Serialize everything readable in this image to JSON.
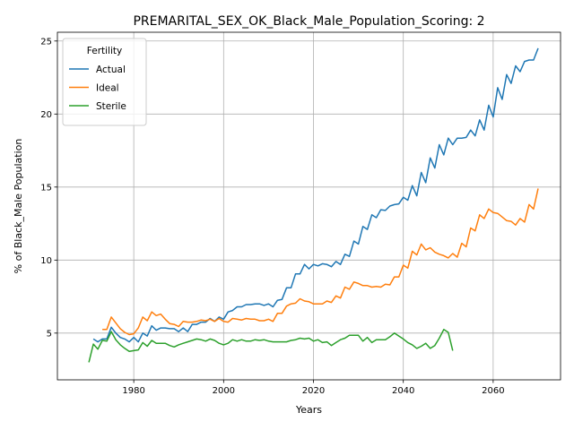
{
  "chart_data": {
    "type": "line",
    "title": "PREMARITAL_SEX_OK_Black_Male_Population_Scoring: 2",
    "xlabel": "Years",
    "ylabel": "% of Black_Male Population",
    "xlim": [
      1963,
      2075
    ],
    "ylim": [
      1.8,
      25.6
    ],
    "xticks": [
      1980,
      2000,
      2020,
      2040,
      2060
    ],
    "yticks": [
      5,
      10,
      15,
      20,
      25
    ],
    "grid": true,
    "legend": {
      "title": "Fertility",
      "placement": "top-left"
    },
    "series": [
      {
        "name": "Actual",
        "color": "#1f77b4",
        "x": [
          1971,
          1972,
          1973,
          1974,
          1975,
          1976,
          1977,
          1978,
          1979,
          1980,
          1981,
          1982,
          1983,
          1984,
          1985,
          1986,
          1987,
          1988,
          1989,
          1990,
          1991,
          1992,
          1993,
          1994,
          1995,
          1996,
          1997,
          1998,
          1999,
          2000,
          2001,
          2002,
          2003,
          2004,
          2005,
          2006,
          2007,
          2008,
          2009,
          2010,
          2011,
          2012,
          2013,
          2014,
          2015,
          2016,
          2017,
          2018,
          2019,
          2020,
          2021,
          2022,
          2023,
          2024,
          2025,
          2026,
          2027,
          2028,
          2029,
          2030,
          2031,
          2032,
          2033,
          2034,
          2035,
          2036,
          2037,
          2038,
          2039,
          2040,
          2041,
          2042,
          2043,
          2044,
          2045,
          2046,
          2047,
          2048,
          2049,
          2050,
          2051,
          2052,
          2053,
          2054,
          2055,
          2056,
          2057,
          2058,
          2059,
          2060,
          2061,
          2062,
          2063,
          2064,
          2065,
          2066,
          2067,
          2068,
          2069,
          2070
        ],
        "y": [
          4.6,
          4.4,
          4.6,
          4.6,
          5.4,
          5.0,
          4.7,
          4.6,
          4.4,
          4.7,
          4.4,
          5.0,
          4.8,
          5.5,
          5.2,
          5.35,
          5.35,
          5.3,
          5.3,
          5.1,
          5.35,
          5.1,
          5.6,
          5.6,
          5.75,
          5.75,
          6.0,
          5.8,
          6.1,
          5.95,
          6.45,
          6.55,
          6.8,
          6.8,
          6.95,
          6.95,
          7.0,
          7.0,
          6.9,
          7.0,
          6.8,
          7.25,
          7.3,
          8.1,
          8.1,
          9.05,
          9.05,
          9.7,
          9.4,
          9.7,
          9.6,
          9.75,
          9.7,
          9.55,
          9.9,
          9.7,
          10.4,
          10.25,
          11.3,
          11.1,
          12.3,
          12.1,
          13.1,
          12.9,
          13.45,
          13.4,
          13.7,
          13.8,
          13.85,
          14.3,
          14.1,
          15.1,
          14.4,
          16.0,
          15.3,
          17.0,
          16.3,
          17.9,
          17.2,
          18.35,
          17.9,
          18.35,
          18.35,
          18.4,
          18.9,
          18.5,
          19.6,
          18.9,
          20.6,
          19.8,
          21.8,
          21.0,
          22.7,
          22.1,
          23.3,
          22.9,
          23.6,
          23.7,
          23.7,
          24.5
        ]
      },
      {
        "name": "Ideal",
        "color": "#ff7f0e",
        "x": [
          1973,
          1974,
          1975,
          1976,
          1977,
          1978,
          1979,
          1980,
          1981,
          1982,
          1983,
          1984,
          1985,
          1986,
          1987,
          1988,
          1989,
          1990,
          1991,
          1992,
          1993,
          1994,
          1995,
          1996,
          1997,
          1998,
          1999,
          2000,
          2001,
          2002,
          2003,
          2004,
          2005,
          2006,
          2007,
          2008,
          2009,
          2010,
          2011,
          2012,
          2013,
          2014,
          2015,
          2016,
          2017,
          2018,
          2019,
          2020,
          2021,
          2022,
          2023,
          2024,
          2025,
          2026,
          2027,
          2028,
          2029,
          2030,
          2031,
          2032,
          2033,
          2034,
          2035,
          2036,
          2037,
          2038,
          2039,
          2040,
          2041,
          2042,
          2043,
          2044,
          2045,
          2046,
          2047,
          2048,
          2049,
          2050,
          2051,
          2052,
          2053,
          2054,
          2055,
          2056,
          2057,
          2058,
          2059,
          2060,
          2061,
          2062,
          2063,
          2064,
          2065,
          2066,
          2067,
          2068,
          2069,
          2070
        ],
        "y": [
          5.25,
          5.25,
          6.1,
          5.7,
          5.3,
          5.05,
          4.9,
          4.95,
          5.35,
          6.1,
          5.85,
          6.45,
          6.2,
          6.3,
          5.95,
          5.65,
          5.6,
          5.45,
          5.8,
          5.75,
          5.75,
          5.8,
          5.9,
          5.85,
          5.95,
          5.8,
          6.0,
          5.8,
          5.75,
          6.0,
          5.95,
          5.9,
          6.0,
          5.95,
          5.95,
          5.85,
          5.85,
          5.95,
          5.8,
          6.35,
          6.35,
          6.85,
          7.0,
          7.05,
          7.35,
          7.2,
          7.15,
          7.0,
          7.0,
          7.0,
          7.2,
          7.1,
          7.55,
          7.4,
          8.15,
          8.0,
          8.5,
          8.4,
          8.25,
          8.25,
          8.15,
          8.2,
          8.15,
          8.35,
          8.3,
          8.85,
          8.85,
          9.65,
          9.45,
          10.6,
          10.35,
          11.1,
          10.7,
          10.85,
          10.55,
          10.4,
          10.3,
          10.15,
          10.45,
          10.2,
          11.15,
          10.9,
          12.2,
          12.0,
          13.1,
          12.85,
          13.5,
          13.25,
          13.2,
          12.95,
          12.7,
          12.65,
          12.4,
          12.85,
          12.6,
          13.8,
          13.5,
          14.9
        ]
      },
      {
        "name": "Sterile",
        "color": "#2ca02c",
        "x": [
          1970,
          1971,
          1972,
          1973,
          1974,
          1975,
          1976,
          1977,
          1978,
          1979,
          1980,
          1981,
          1982,
          1983,
          1984,
          1985,
          1986,
          1987,
          1988,
          1989,
          1990,
          1991,
          1992,
          1993,
          1994,
          1995,
          1996,
          1997,
          1998,
          1999,
          2000,
          2001,
          2002,
          2003,
          2004,
          2005,
          2006,
          2007,
          2008,
          2009,
          2010,
          2011,
          2012,
          2013,
          2014,
          2015,
          2016,
          2017,
          2018,
          2019,
          2020,
          2021,
          2022,
          2023,
          2024,
          2025,
          2026,
          2027,
          2028,
          2029,
          2030,
          2031,
          2032,
          2033,
          2034,
          2035,
          2036,
          2037,
          2038,
          2039,
          2040,
          2041,
          2042,
          2043,
          2044,
          2045,
          2046,
          2047,
          2048,
          2049,
          2050,
          2051
        ],
        "y": [
          3.0,
          4.25,
          3.9,
          4.5,
          4.45,
          5.1,
          4.55,
          4.2,
          3.95,
          3.75,
          3.8,
          3.85,
          4.35,
          4.1,
          4.5,
          4.3,
          4.3,
          4.3,
          4.15,
          4.05,
          4.2,
          4.3,
          4.4,
          4.5,
          4.6,
          4.55,
          4.45,
          4.6,
          4.5,
          4.3,
          4.2,
          4.3,
          4.55,
          4.45,
          4.55,
          4.45,
          4.45,
          4.55,
          4.5,
          4.55,
          4.45,
          4.4,
          4.4,
          4.4,
          4.4,
          4.5,
          4.55,
          4.65,
          4.6,
          4.65,
          4.45,
          4.55,
          4.35,
          4.4,
          4.15,
          4.35,
          4.55,
          4.65,
          4.85,
          4.85,
          4.85,
          4.45,
          4.7,
          4.35,
          4.55,
          4.55,
          4.55,
          4.75,
          5.0,
          4.8,
          4.6,
          4.35,
          4.2,
          3.95,
          4.1,
          4.3,
          3.95,
          4.15,
          4.65,
          5.25,
          5.05,
          3.8
        ]
      }
    ]
  }
}
